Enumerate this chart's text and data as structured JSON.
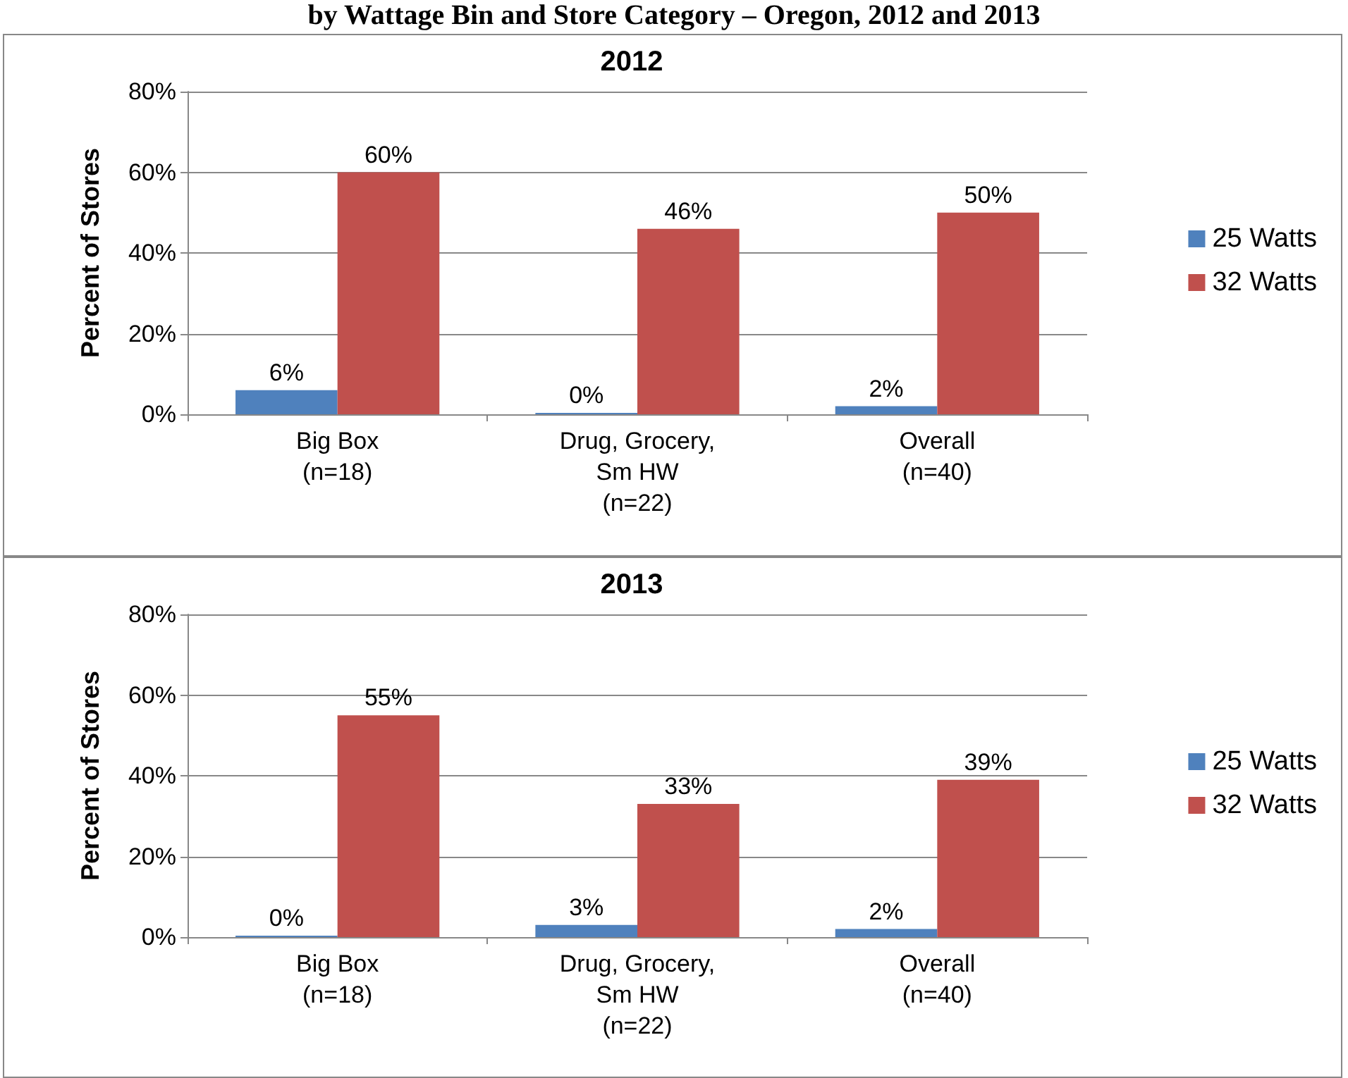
{
  "chart_data": [
    {
      "type": "bar",
      "title": "2012",
      "ylabel": "Percent of Stores",
      "annotations": [
        "by Wattage Bin and Store Category – Oregon, 2012 and 2013"
      ],
      "categories": [
        "Big Box\n(n=18)",
        "Drug, Grocery,\nSm HW\n(n=22)",
        "Overall\n(n=40)"
      ],
      "series": [
        {
          "name": "25 Watts",
          "color": "#4f81bd",
          "values": [
            6,
            0,
            2
          ],
          "value_labels": [
            "6%",
            "0%",
            "2%"
          ]
        },
        {
          "name": "32 Watts",
          "color": "#c0504d",
          "values": [
            60,
            46,
            50
          ],
          "value_labels": [
            "60%",
            "46%",
            "50%"
          ]
        }
      ],
      "ylim": [
        0,
        80
      ],
      "yticks": [
        {
          "value": 0,
          "label": "0%"
        },
        {
          "value": 20,
          "label": "20%"
        },
        {
          "value": 40,
          "label": "40%"
        },
        {
          "value": 60,
          "label": "60%"
        },
        {
          "value": 80,
          "label": "80%"
        }
      ],
      "grid": "y",
      "legend": "right"
    },
    {
      "type": "bar",
      "title": "2013",
      "ylabel": "Percent of Stores",
      "categories": [
        "Big Box\n(n=18)",
        "Drug, Grocery,\nSm HW\n(n=22)",
        "Overall\n(n=40)"
      ],
      "series": [
        {
          "name": "25 Watts",
          "color": "#4f81bd",
          "values": [
            0,
            3,
            2
          ],
          "value_labels": [
            "0%",
            "3%",
            "2%"
          ]
        },
        {
          "name": "32 Watts",
          "color": "#c0504d",
          "values": [
            55,
            33,
            39
          ],
          "value_labels": [
            "55%",
            "33%",
            "39%"
          ]
        }
      ],
      "ylim": [
        0,
        80
      ],
      "yticks": [
        {
          "value": 0,
          "label": "0%"
        },
        {
          "value": 20,
          "label": "20%"
        },
        {
          "value": 40,
          "label": "40%"
        },
        {
          "value": 60,
          "label": "60%"
        },
        {
          "value": 80,
          "label": "80%"
        }
      ],
      "grid": "y",
      "legend": "right"
    }
  ]
}
